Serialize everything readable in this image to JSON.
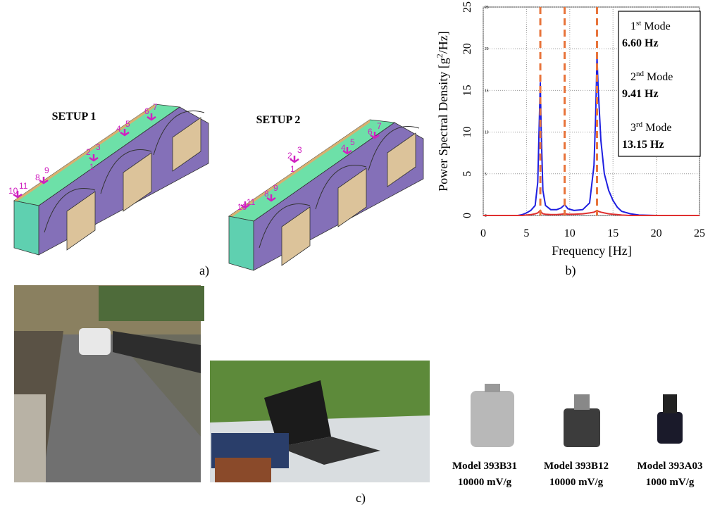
{
  "figure": {
    "setups": [
      {
        "title": "SETUP 1",
        "sensor_labels": [
          "1",
          "2",
          "3",
          "4",
          "5",
          "6",
          "7",
          "8",
          "9",
          "10",
          "11"
        ]
      },
      {
        "title": "SETUP 2",
        "sensor_labels": [
          "1",
          "2",
          "3",
          "4",
          "5",
          "6",
          "7",
          "8",
          "9",
          "10",
          "11"
        ]
      }
    ],
    "panel_labels": [
      "a)",
      "b)",
      "c)"
    ],
    "sensors": [
      {
        "model": "Model 393B31",
        "sensitivity": "10000 mV/g"
      },
      {
        "model": "Model 393B12",
        "sensitivity": "10000 mV/g"
      },
      {
        "model": "Model 393A03",
        "sensitivity": "1000 mV/g"
      }
    ]
  },
  "chart_data": {
    "type": "line",
    "x_label": "Frequency [Hz]",
    "y_label": {
      "main": "Power Spectral Density  [g",
      "sup": "2",
      "rest": "/Hz]"
    },
    "xlim": [
      0,
      25
    ],
    "xticks": [
      0,
      5,
      10,
      15,
      20,
      25
    ],
    "ylim": [
      0,
      25
    ],
    "yticks": [
      0,
      5,
      10,
      15,
      20,
      25
    ],
    "grid": true,
    "x": [
      0,
      2,
      4,
      4.5,
      5,
      5.5,
      6,
      6.3,
      6.5,
      6.6,
      6.7,
      6.9,
      7.2,
      7.8,
      8.5,
      9,
      9.41,
      9.8,
      10.5,
      11.5,
      12.3,
      12.8,
      13,
      13.15,
      13.3,
      13.6,
      14,
      14.5,
      15,
      15.5,
      16,
      17,
      18,
      20,
      25
    ],
    "series": [
      {
        "color": "#1f1fe0",
        "values": [
          0,
          0,
          0,
          0.1,
          0.3,
          0.6,
          1.2,
          4,
          12,
          16,
          10,
          3,
          1.2,
          0.7,
          0.7,
          0.9,
          1.3,
          0.8,
          0.6,
          0.7,
          1.5,
          6,
          12,
          19,
          15,
          9,
          5,
          3,
          1.8,
          1,
          0.5,
          0.2,
          0.05,
          0,
          0
        ]
      },
      {
        "color": "#e03030",
        "values": [
          0,
          0,
          0,
          0,
          0.05,
          0.1,
          0.2,
          0.3,
          0.5,
          0.6,
          0.4,
          0.2,
          0.15,
          0.1,
          0.1,
          0.15,
          0.2,
          0.15,
          0.15,
          0.2,
          0.3,
          0.4,
          0.5,
          0.6,
          0.5,
          0.4,
          0.3,
          0.2,
          0.15,
          0.1,
          0.05,
          0,
          0,
          0,
          0
        ]
      }
    ],
    "modes": [
      {
        "num": "1",
        "sup": "st",
        "name": "Mode",
        "value": 6.6,
        "label": "6.60 Hz"
      },
      {
        "num": "2",
        "sup": "nd",
        "name": "Mode",
        "value": 9.41,
        "label": "9.41 Hz"
      },
      {
        "num": "3",
        "sup": "rd",
        "name": "Mode",
        "value": 13.15,
        "label": "13.15 Hz"
      }
    ],
    "mode_color": "#e8743b"
  }
}
